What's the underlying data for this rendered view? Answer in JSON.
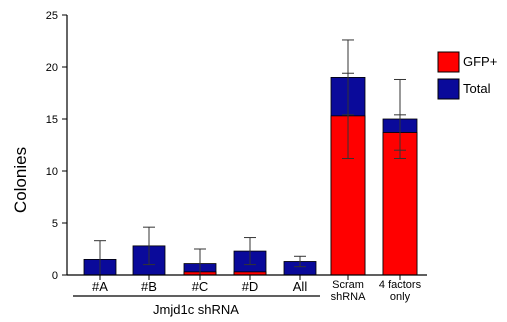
{
  "chart_data": {
    "type": "bar",
    "stacked": true,
    "ylabel": "Colonies",
    "ylim": [
      0,
      25
    ],
    "yticks": [
      0,
      5,
      10,
      15,
      20,
      25
    ],
    "grid": false,
    "legend_position": "top-right",
    "group_label": "Jmjd1c shRNA",
    "categories": [
      [
        "#A"
      ],
      [
        "#B"
      ],
      [
        "#C"
      ],
      [
        "#D"
      ],
      [
        "All"
      ],
      [
        "Scram",
        "shRNA"
      ],
      [
        "4 factors",
        "only"
      ]
    ],
    "series": [
      {
        "name": "GFP+",
        "color": "#ff0000",
        "values": [
          0,
          0,
          0.3,
          0.3,
          0,
          15.3,
          13.7
        ]
      },
      {
        "name": "Total",
        "color": "#0a0a9a",
        "values": [
          1.5,
          2.8,
          1.1,
          2.3,
          1.3,
          19.0,
          15.0
        ]
      }
    ],
    "error_bars": {
      "total_err": [
        1.8,
        1.8,
        1.4,
        1.3,
        0.5,
        3.6,
        3.8
      ],
      "gfp_err": [
        0,
        0,
        0,
        0,
        0,
        4.1,
        1.7
      ]
    }
  }
}
